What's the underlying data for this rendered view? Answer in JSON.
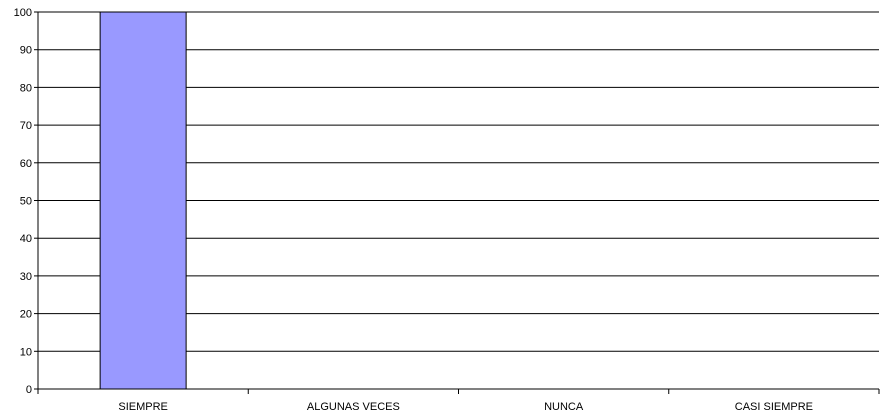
{
  "chart_data": {
    "type": "bar",
    "categories": [
      "SIEMPRE",
      "ALGUNAS VECES",
      "NUNCA",
      "CASI SIEMPRE"
    ],
    "values": [
      100,
      0,
      0,
      0
    ],
    "ylim": [
      0,
      100
    ],
    "yticks": [
      0,
      10,
      20,
      30,
      40,
      50,
      60,
      70,
      80,
      90,
      100
    ],
    "grid": true,
    "legend": "none",
    "colors": {
      "bar_fill": "#9999ff",
      "bar_stroke": "#000000",
      "gridline": "#000000",
      "axis": "#000000"
    }
  }
}
